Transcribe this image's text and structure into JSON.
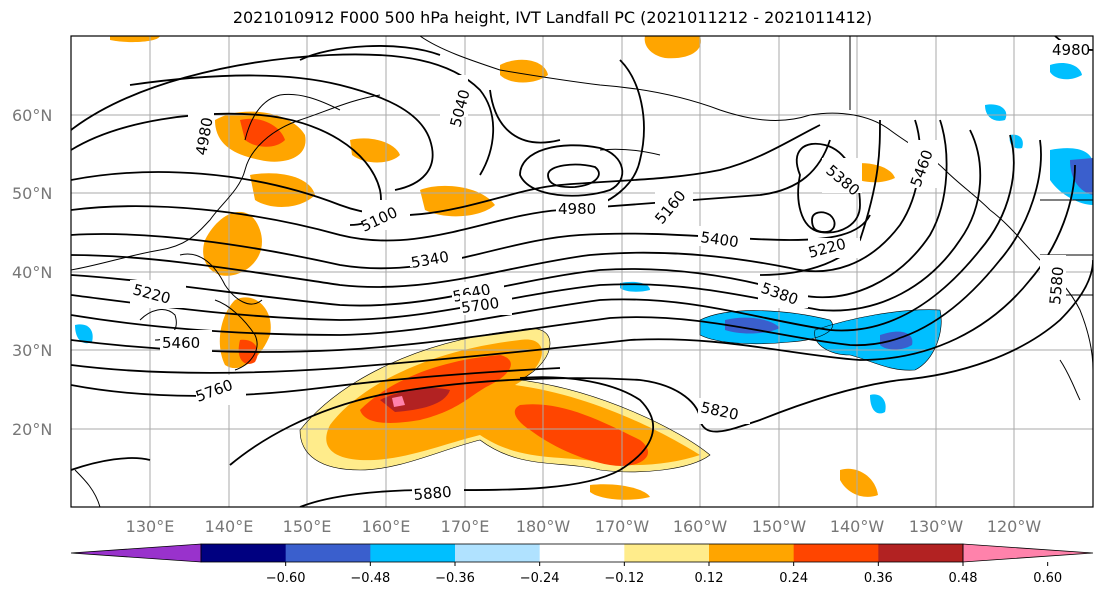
{
  "title": "2021010912 F000 500 hPa height, IVT Landfall PC (2021011212 - 2021011412)",
  "lat_labels": [
    "60°N",
    "50°N",
    "40°N",
    "30°N",
    "20°N"
  ],
  "lon_labels": [
    "130°E",
    "140°E",
    "150°E",
    "160°E",
    "170°E",
    "180°W",
    "170°W",
    "160°W",
    "150°W",
    "140°W",
    "130°W",
    "120°W"
  ],
  "contour_labels": [
    "5040",
    "4980",
    "5160",
    "5380",
    "5220",
    "5100",
    "5340",
    "5400",
    "5380",
    "5220",
    "5460",
    "5640",
    "5700",
    "5760",
    "5820",
    "5880",
    "4980",
    "5580",
    "5460",
    "4980"
  ],
  "colorbar": {
    "ticks": [
      "−0.60",
      "−0.48",
      "−0.36",
      "−0.24",
      "−0.12",
      "0.12",
      "0.24",
      "0.36",
      "0.48",
      "0.60"
    ],
    "colors": [
      "#9932cc",
      "#000080",
      "#3a5fcd",
      "#00bfff",
      "#b0e2ff",
      "#ffffff",
      "#ffec8b",
      "#ffa500",
      "#ff4500",
      "#b22222",
      "#ff82ab"
    ]
  }
}
